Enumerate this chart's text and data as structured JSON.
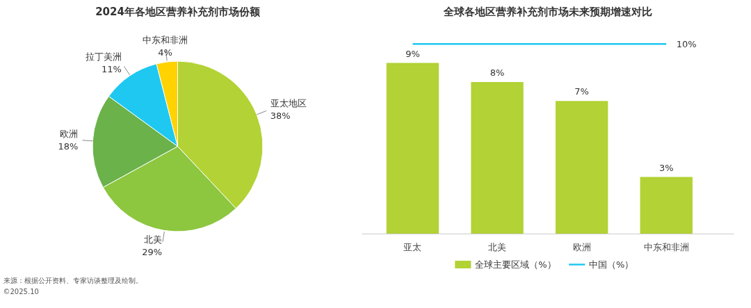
{
  "chart_data": [
    {
      "type": "pie",
      "title": "2024年各地区营养补充剂市场份额",
      "categories": [
        "亚太地区",
        "北美",
        "欧洲",
        "拉丁美洲",
        "中东和非洲"
      ],
      "values": [
        38,
        29,
        18,
        11,
        4
      ],
      "colors": [
        "#b2d235",
        "#8dc63f",
        "#6bb24a",
        "#1ec8f0",
        "#ffd200"
      ],
      "value_labels": [
        "38%",
        "29%",
        "18%",
        "11%",
        "4%"
      ],
      "legend": false,
      "annotations": [
        "来源：根据公开资料、专家访谈整理及绘制。",
        "©2025.10"
      ]
    },
    {
      "type": "bar",
      "title": "全球各地区营养补充剂市场未来预期增速对比",
      "categories": [
        "亚太",
        "北美",
        "欧洲",
        "中东和非洲"
      ],
      "series": [
        {
          "name": "全球主要区域（%）",
          "type": "bar",
          "color": "#b2d235",
          "values": [
            9,
            8,
            7,
            3
          ],
          "value_labels": [
            "9%",
            "8%",
            "7%",
            "3%"
          ]
        },
        {
          "name": "中国（%）",
          "type": "line",
          "color": "#1ec8f0",
          "values": [
            10,
            10,
            10,
            10
          ],
          "value_labels": [
            null,
            null,
            null,
            "10%"
          ]
        }
      ],
      "legend": "bottom",
      "grid": false,
      "tick_labels": "x"
    }
  ]
}
